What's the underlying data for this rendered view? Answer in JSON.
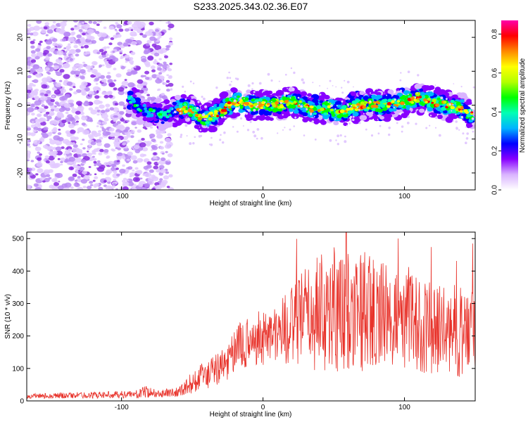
{
  "title": "S233.2025.343.02.36.E07",
  "chart_data": [
    {
      "type": "heatmap",
      "name": "spectrogram",
      "xlabel": "Height of straight line (km)",
      "ylabel": "Frequency (Hz)",
      "xlim": [
        -167,
        150
      ],
      "ylim": [
        -25,
        25
      ],
      "xticks": [
        -100,
        0,
        100
      ],
      "yticks": [
        -20,
        -10,
        0,
        10,
        20
      ],
      "colorbar": {
        "label": "Normalized spectral amplitude",
        "range": [
          0.0,
          0.87
        ],
        "ticks": [
          "0.0",
          "0.2",
          "0.4",
          "0.6",
          "0.8"
        ],
        "tick_values": [
          0.0,
          0.2,
          0.4,
          0.6,
          0.8
        ],
        "colors": [
          "#ffffff",
          "#d9b3ff",
          "#8800ff",
          "#0000ff",
          "#00b4ff",
          "#00ffb4",
          "#00ff00",
          "#b4ff00",
          "#ffff00",
          "#ff8800",
          "#ff0000",
          "#ff00aa"
        ]
      },
      "ridge": {
        "x": [
          -95,
          -92,
          -88,
          -80,
          -70,
          -62,
          -55,
          -48,
          -42,
          -35,
          -30,
          -25,
          -18,
          -10,
          0,
          10,
          20,
          28,
          35,
          45,
          55,
          62,
          70,
          80,
          90,
          100,
          110,
          120,
          130,
          140,
          148
        ],
        "y": [
          2,
          1,
          -1,
          -2,
          -3,
          -2,
          -1,
          -2,
          -4,
          -3,
          -2,
          0,
          1,
          0,
          0,
          0,
          1,
          0,
          -1,
          -1,
          -2,
          -1,
          0,
          0,
          0,
          1,
          2,
          1,
          0,
          -1,
          -3
        ]
      },
      "noise_region_x": [
        -167,
        -65
      ]
    },
    {
      "type": "line",
      "name": "snr",
      "xlabel": "Height of straight line (km)",
      "ylabel": "SNR (10 * v/v)",
      "xlim": [
        -167,
        150
      ],
      "ylim": [
        0,
        520
      ],
      "xticks": [
        -100,
        0,
        100
      ],
      "yticks": [
        0,
        100,
        200,
        300,
        400,
        500
      ],
      "color": "#e8322a",
      "envelope_x": [
        -167,
        -120,
        -90,
        -82,
        -75,
        -60,
        -52,
        -45,
        -35,
        -25,
        -20,
        -10,
        0,
        10,
        20,
        30,
        40,
        50,
        60,
        70,
        80,
        90,
        100,
        110,
        120,
        130,
        140,
        150
      ],
      "envelope_mean": [
        15,
        18,
        20,
        28,
        22,
        28,
        50,
        70,
        90,
        120,
        160,
        180,
        200,
        210,
        230,
        260,
        270,
        280,
        275,
        280,
        270,
        260,
        250,
        235,
        225,
        215,
        220,
        210
      ],
      "envelope_spread": [
        8,
        10,
        12,
        20,
        12,
        15,
        30,
        40,
        50,
        60,
        70,
        80,
        90,
        100,
        120,
        160,
        180,
        200,
        180,
        190,
        170,
        160,
        150,
        150,
        140,
        130,
        150,
        120
      ]
    }
  ]
}
